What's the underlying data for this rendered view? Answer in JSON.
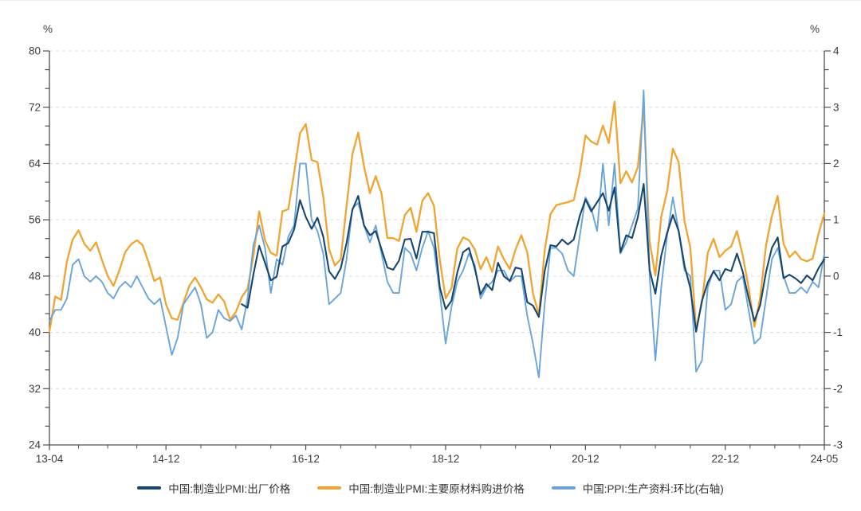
{
  "chart_data": {
    "type": "line",
    "title": "",
    "frequency": "monthly",
    "x_start": "2013-04",
    "x_end": "2024-05",
    "n_points": 134,
    "legend_position": "bottom-center",
    "grid": "horizontal-dashed",
    "x_ticks": [
      {
        "label": "13-04",
        "month_index": 0
      },
      {
        "label": "14-12",
        "month_index": 20
      },
      {
        "label": "16-12",
        "month_index": 44
      },
      {
        "label": "18-12",
        "month_index": 68
      },
      {
        "label": "20-12",
        "month_index": 92
      },
      {
        "label": "22-12",
        "month_index": 116
      },
      {
        "label": "24-05",
        "month_index": 133
      }
    ],
    "left_axis": {
      "unit": "%",
      "min": 24,
      "max": 80,
      "tick_step": 8,
      "tick_labels": [
        "80",
        "72",
        "64",
        "56",
        "48",
        "40",
        "32",
        "24"
      ],
      "grid_values": [
        80,
        72,
        64,
        56,
        48,
        40,
        32
      ]
    },
    "right_axis": {
      "unit": "%",
      "min": -3,
      "max": 4,
      "tick_step": 1,
      "tick_labels": [
        "4",
        "3",
        "2",
        "1",
        "0",
        "-1",
        "-2",
        "-3"
      ]
    },
    "series": [
      {
        "name": "中国:制造业PMI:出厂价格",
        "axis": "left",
        "color": "#17466e",
        "values": [
          null,
          null,
          null,
          null,
          null,
          null,
          null,
          null,
          null,
          null,
          null,
          null,
          null,
          null,
          null,
          null,
          null,
          null,
          null,
          null,
          null,
          null,
          null,
          null,
          null,
          null,
          null,
          null,
          null,
          null,
          null,
          null,
          null,
          44.0,
          43.5,
          48.2,
          52.3,
          49.9,
          47.4,
          47.9,
          52.2,
          52.7,
          54.6,
          58.8,
          56.4,
          54.7,
          56.3,
          53.6,
          48.7,
          47.6,
          49.1,
          52.7,
          57.4,
          59.4,
          55.2,
          53.8,
          54.4,
          51.8,
          49.2,
          48.9,
          50.2,
          53.2,
          53.3,
          50.5,
          54.3,
          54.3,
          54.1,
          46.4,
          43.3,
          44.5,
          48.5,
          51.4,
          52.0,
          49.1,
          45.4,
          46.9,
          46.0,
          49.9,
          48.0,
          47.3,
          49.2,
          49.0,
          44.3,
          43.8,
          42.2,
          48.7,
          52.4,
          52.2,
          53.2,
          52.5,
          53.2,
          56.5,
          58.9,
          57.2,
          58.5,
          59.8,
          57.3,
          60.6,
          51.4,
          53.8,
          53.4,
          56.4,
          61.1,
          48.9,
          45.5,
          50.9,
          54.1,
          56.7,
          54.4,
          49.5,
          46.3,
          40.1,
          44.5,
          47.1,
          48.7,
          47.4,
          49.0,
          48.7,
          51.2,
          48.6,
          44.9,
          41.6,
          43.9,
          48.6,
          52.0,
          53.5,
          47.7,
          48.2,
          47.7,
          47.0,
          48.1,
          47.4,
          49.1,
          50.4
        ]
      },
      {
        "name": "中国:制造业PMI:主要原材料购进价格",
        "axis": "left",
        "color": "#f0a432",
        "values": [
          40.1,
          45.1,
          44.6,
          50.1,
          53.2,
          54.5,
          52.6,
          51.6,
          52.8,
          50.3,
          48.0,
          46.6,
          48.8,
          51.4,
          52.5,
          53.1,
          52.4,
          50.0,
          47.3,
          47.8,
          44.0,
          42.0,
          41.8,
          44.2,
          46.6,
          47.8,
          46.4,
          44.7,
          44.2,
          45.4,
          44.4,
          41.8,
          42.9,
          45.0,
          46.2,
          50.8,
          57.2,
          53.1,
          51.3,
          50.9,
          57.2,
          57.5,
          62.6,
          68.3,
          69.6,
          64.5,
          64.2,
          59.3,
          51.8,
          49.5,
          50.4,
          57.9,
          65.3,
          68.4,
          63.6,
          59.8,
          62.2,
          59.7,
          53.4,
          53.4,
          53.0,
          56.7,
          57.7,
          54.3,
          58.7,
          59.8,
          58.0,
          50.3,
          44.8,
          46.3,
          51.9,
          53.5,
          53.1,
          51.8,
          49.0,
          50.7,
          48.6,
          52.2,
          50.4,
          49.0,
          51.8,
          53.8,
          51.4,
          45.5,
          42.5,
          51.6,
          56.8,
          58.1,
          58.3,
          58.5,
          58.8,
          62.6,
          68.0,
          67.1,
          66.7,
          69.4,
          66.9,
          72.8,
          61.2,
          62.9,
          61.3,
          63.5,
          72.1,
          52.9,
          48.1,
          56.4,
          60.0,
          66.1,
          64.2,
          55.8,
          52.0,
          40.4,
          44.3,
          51.3,
          53.3,
          50.7,
          51.6,
          52.2,
          54.4,
          50.9,
          46.4,
          40.8,
          45.0,
          52.4,
          56.5,
          59.4,
          52.6,
          50.7,
          51.5,
          50.4,
          50.1,
          50.5,
          54.0,
          56.9
        ]
      },
      {
        "name": "中国:PPI:生产资料:环比(右轴)",
        "axis": "right",
        "color": "#6aa4d9",
        "values": [
          -0.8,
          -0.6,
          -0.6,
          -0.4,
          0.2,
          0.3,
          0.0,
          -0.1,
          0.0,
          -0.1,
          -0.3,
          -0.4,
          -0.2,
          -0.1,
          -0.2,
          0.0,
          -0.2,
          -0.4,
          -0.5,
          -0.4,
          -0.9,
          -1.4,
          -1.1,
          -0.5,
          -0.35,
          -0.2,
          -0.5,
          -1.1,
          -1.0,
          -0.6,
          -0.75,
          -0.8,
          -0.7,
          -0.95,
          -0.4,
          0.55,
          0.9,
          0.5,
          -0.3,
          0.3,
          0.2,
          0.7,
          0.9,
          2.0,
          2.0,
          1.0,
          0.8,
          0.4,
          -0.5,
          -0.4,
          -0.3,
          0.3,
          1.2,
          1.3,
          0.9,
          0.6,
          0.9,
          0.4,
          -0.1,
          -0.3,
          -0.3,
          0.5,
          0.4,
          0.1,
          0.5,
          0.8,
          0.5,
          -0.3,
          -1.2,
          -0.55,
          -0.1,
          0.1,
          0.4,
          0.2,
          -0.4,
          -0.2,
          -0.1,
          0.1,
          0.1,
          -0.1,
          0.0,
          0.0,
          -0.7,
          -1.2,
          -1.8,
          -0.5,
          0.5,
          0.5,
          0.4,
          0.1,
          0.0,
          0.7,
          1.4,
          1.2,
          0.8,
          2.0,
          0.9,
          2.0,
          0.4,
          0.6,
          0.9,
          1.2,
          3.3,
          0.0,
          -1.5,
          -0.2,
          0.7,
          1.4,
          0.8,
          0.1,
          0.0,
          -1.7,
          -1.5,
          -0.2,
          0.1,
          0.1,
          -0.6,
          -0.5,
          -0.1,
          0.0,
          -0.6,
          -1.2,
          -1.1,
          -0.4,
          0.3,
          0.5,
          0.0,
          -0.3,
          -0.3,
          -0.2,
          -0.3,
          -0.1,
          -0.2,
          0.4
        ]
      }
    ]
  },
  "colors": {
    "axis": "#4f4f4f",
    "grid": "#dadada",
    "tick_label": "#3d3d3d",
    "legend_text": "#333333"
  }
}
